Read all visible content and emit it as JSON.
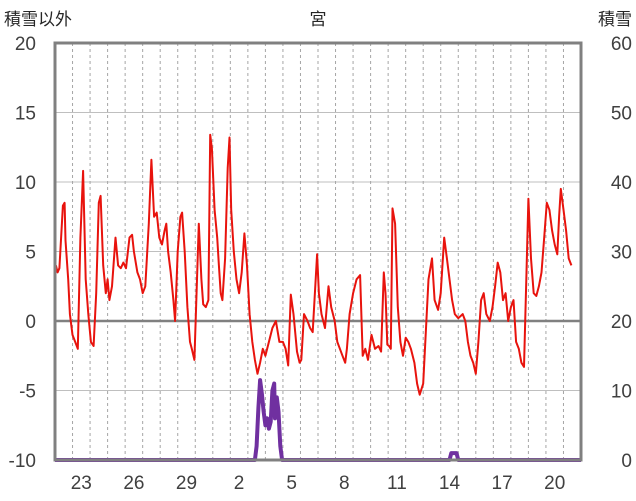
{
  "chart_data": {
    "type": "line",
    "title": "宮",
    "left_axis_label": "積雪以外",
    "right_axis_label": "積雪",
    "left_axis": {
      "min": -10,
      "max": 20,
      "ticks": [
        20,
        15,
        10,
        5,
        0,
        -5,
        -10
      ]
    },
    "right_axis": {
      "min": 0,
      "max": 60,
      "ticks": [
        60,
        50,
        40,
        30,
        20,
        10,
        0
      ]
    },
    "x_tick_labels": [
      "23",
      "26",
      "29",
      "2",
      "5",
      "8",
      "11",
      "14",
      "17",
      "20"
    ],
    "x_tick_day_index": [
      1.5,
      4.5,
      7.5,
      10.5,
      13.5,
      16.5,
      19.5,
      22.5,
      25.5,
      28.5
    ],
    "x_range_days": [
      0,
      30
    ],
    "grid": true,
    "series": [
      {
        "color": "#e8130d",
        "axis": "left",
        "points": [
          [
            0.05,
            4.0
          ],
          [
            0.15,
            3.5
          ],
          [
            0.25,
            3.8
          ],
          [
            0.45,
            8.3
          ],
          [
            0.55,
            8.5
          ],
          [
            0.6,
            5.8
          ],
          [
            0.75,
            3.0
          ],
          [
            0.85,
            0.5
          ],
          [
            1.0,
            -1.0
          ],
          [
            1.15,
            -1.5
          ],
          [
            1.3,
            -2.0
          ],
          [
            1.45,
            6.0
          ],
          [
            1.6,
            10.8
          ],
          [
            1.75,
            3.0
          ],
          [
            1.9,
            0.5
          ],
          [
            2.05,
            -1.5
          ],
          [
            2.2,
            -1.8
          ],
          [
            2.35,
            2.0
          ],
          [
            2.5,
            8.5
          ],
          [
            2.6,
            9.0
          ],
          [
            2.75,
            4.0
          ],
          [
            2.9,
            2.0
          ],
          [
            3.0,
            3.0
          ],
          [
            3.1,
            1.5
          ],
          [
            3.25,
            2.5
          ],
          [
            3.45,
            6.0
          ],
          [
            3.6,
            4.0
          ],
          [
            3.75,
            3.8
          ],
          [
            3.9,
            4.2
          ],
          [
            4.05,
            3.8
          ],
          [
            4.25,
            6.0
          ],
          [
            4.4,
            6.2
          ],
          [
            4.5,
            5.0
          ],
          [
            4.7,
            3.5
          ],
          [
            4.85,
            3.0
          ],
          [
            5.0,
            2.0
          ],
          [
            5.15,
            2.5
          ],
          [
            5.35,
            7.0
          ],
          [
            5.5,
            11.6
          ],
          [
            5.65,
            7.5
          ],
          [
            5.8,
            7.8
          ],
          [
            5.95,
            6.0
          ],
          [
            6.1,
            5.5
          ],
          [
            6.25,
            6.5
          ],
          [
            6.35,
            7.0
          ],
          [
            6.45,
            5.0
          ],
          [
            6.6,
            3.5
          ],
          [
            6.75,
            1.5
          ],
          [
            6.85,
            0.0
          ],
          [
            7.0,
            5.0
          ],
          [
            7.15,
            7.5
          ],
          [
            7.25,
            7.8
          ],
          [
            7.4,
            5.0
          ],
          [
            7.55,
            1.0
          ],
          [
            7.7,
            -1.5
          ],
          [
            7.8,
            -2.0
          ],
          [
            7.95,
            -2.8
          ],
          [
            8.05,
            1.0
          ],
          [
            8.2,
            7.0
          ],
          [
            8.35,
            3.0
          ],
          [
            8.45,
            1.2
          ],
          [
            8.6,
            1.0
          ],
          [
            8.75,
            1.5
          ],
          [
            8.85,
            13.4
          ],
          [
            8.95,
            12.4
          ],
          [
            9.1,
            8.0
          ],
          [
            9.25,
            6.0
          ],
          [
            9.35,
            4.0
          ],
          [
            9.45,
            2.0
          ],
          [
            9.55,
            1.5
          ],
          [
            9.7,
            4.5
          ],
          [
            9.85,
            11.0
          ],
          [
            9.95,
            13.2
          ],
          [
            10.05,
            8.0
          ],
          [
            10.2,
            5.0
          ],
          [
            10.35,
            3.0
          ],
          [
            10.5,
            2.0
          ],
          [
            10.65,
            3.5
          ],
          [
            10.8,
            6.3
          ],
          [
            10.95,
            4.0
          ],
          [
            11.1,
            0.5
          ],
          [
            11.25,
            -1.5
          ],
          [
            11.4,
            -2.8
          ],
          [
            11.55,
            -3.8
          ],
          [
            11.7,
            -3.0
          ],
          [
            11.85,
            -2.0
          ],
          [
            12.0,
            -2.5
          ],
          [
            12.2,
            -1.5
          ],
          [
            12.4,
            -0.5
          ],
          [
            12.6,
            0.0
          ],
          [
            12.8,
            -1.5
          ],
          [
            13.0,
            -1.5
          ],
          [
            13.15,
            -2.0
          ],
          [
            13.3,
            -3.2
          ],
          [
            13.45,
            1.9
          ],
          [
            13.6,
            0.5
          ],
          [
            13.8,
            -2.2
          ],
          [
            13.95,
            -3.0
          ],
          [
            14.05,
            -2.8
          ],
          [
            14.2,
            0.5
          ],
          [
            14.4,
            0.0
          ],
          [
            14.55,
            -0.5
          ],
          [
            14.7,
            -0.8
          ],
          [
            14.8,
            1.5
          ],
          [
            14.95,
            4.8
          ],
          [
            15.05,
            2.0
          ],
          [
            15.2,
            0.5
          ],
          [
            15.4,
            -0.5
          ],
          [
            15.6,
            2.5
          ],
          [
            15.75,
            1.0
          ],
          [
            15.95,
            0.0
          ],
          [
            16.1,
            -1.5
          ],
          [
            16.25,
            -2.0
          ],
          [
            16.4,
            -2.5
          ],
          [
            16.55,
            -3.0
          ],
          [
            16.65,
            -2.0
          ],
          [
            16.8,
            0.5
          ],
          [
            17.0,
            2.0
          ],
          [
            17.2,
            3.0
          ],
          [
            17.4,
            3.3
          ],
          [
            17.55,
            -2.5
          ],
          [
            17.7,
            -2.0
          ],
          [
            17.85,
            -2.8
          ],
          [
            18.05,
            -1.0
          ],
          [
            18.25,
            -2.0
          ],
          [
            18.45,
            -1.8
          ],
          [
            18.6,
            -2.2
          ],
          [
            18.75,
            3.5
          ],
          [
            18.85,
            2.0
          ],
          [
            18.95,
            -1.7
          ],
          [
            19.05,
            -1.8
          ],
          [
            19.15,
            -2.0
          ],
          [
            19.25,
            8.1
          ],
          [
            19.4,
            7.0
          ],
          [
            19.55,
            1.0
          ],
          [
            19.7,
            -1.5
          ],
          [
            19.85,
            -2.5
          ],
          [
            20.0,
            -1.2
          ],
          [
            20.15,
            -1.5
          ],
          [
            20.3,
            -2.0
          ],
          [
            20.5,
            -3.0
          ],
          [
            20.65,
            -4.5
          ],
          [
            20.8,
            -5.3
          ],
          [
            21.0,
            -4.5
          ],
          [
            21.3,
            3.0
          ],
          [
            21.5,
            4.5
          ],
          [
            21.65,
            1.5
          ],
          [
            21.85,
            0.8
          ],
          [
            22.0,
            2.0
          ],
          [
            22.2,
            6.0
          ],
          [
            22.35,
            4.5
          ],
          [
            22.5,
            3.0
          ],
          [
            22.65,
            1.5
          ],
          [
            22.8,
            0.5
          ],
          [
            23.0,
            0.2
          ],
          [
            23.25,
            0.5
          ],
          [
            23.4,
            0.0
          ],
          [
            23.55,
            -1.5
          ],
          [
            23.7,
            -2.5
          ],
          [
            23.85,
            -3.0
          ],
          [
            24.0,
            -3.8
          ],
          [
            24.15,
            -1.5
          ],
          [
            24.3,
            1.5
          ],
          [
            24.45,
            2.0
          ],
          [
            24.6,
            0.5
          ],
          [
            24.8,
            0.0
          ],
          [
            24.95,
            1.0
          ],
          [
            25.1,
            2.5
          ],
          [
            25.25,
            4.2
          ],
          [
            25.4,
            3.5
          ],
          [
            25.55,
            1.5
          ],
          [
            25.7,
            2.0
          ],
          [
            25.85,
            0.0
          ],
          [
            26.0,
            1.0
          ],
          [
            26.15,
            1.5
          ],
          [
            26.3,
            -1.5
          ],
          [
            26.45,
            -2.0
          ],
          [
            26.6,
            -3.0
          ],
          [
            26.75,
            -3.3
          ],
          [
            26.9,
            3.8
          ],
          [
            27.0,
            8.8
          ],
          [
            27.15,
            4.5
          ],
          [
            27.3,
            2.0
          ],
          [
            27.45,
            1.8
          ],
          [
            27.6,
            2.5
          ],
          [
            27.75,
            3.5
          ],
          [
            27.9,
            6.0
          ],
          [
            28.05,
            8.5
          ],
          [
            28.2,
            8.0
          ],
          [
            28.35,
            6.5
          ],
          [
            28.5,
            5.5
          ],
          [
            28.65,
            4.8
          ],
          [
            28.75,
            7.5
          ],
          [
            28.85,
            9.5
          ],
          [
            29.0,
            8.0
          ],
          [
            29.15,
            6.5
          ],
          [
            29.3,
            4.5
          ],
          [
            29.45,
            4.0
          ]
        ]
      },
      {
        "color": "#7030a0",
        "axis": "right",
        "points": [
          [
            0.0,
            0.0
          ],
          [
            11.4,
            0.0
          ],
          [
            11.5,
            2.0
          ],
          [
            11.6,
            7.5
          ],
          [
            11.7,
            11.5
          ],
          [
            11.8,
            9.5
          ],
          [
            11.9,
            7.0
          ],
          [
            12.0,
            5.0
          ],
          [
            12.1,
            6.0
          ],
          [
            12.2,
            4.5
          ],
          [
            12.3,
            5.5
          ],
          [
            12.4,
            10.0
          ],
          [
            12.5,
            11.0
          ],
          [
            12.55,
            6.0
          ],
          [
            12.65,
            9.0
          ],
          [
            12.75,
            7.0
          ],
          [
            12.85,
            2.0
          ],
          [
            12.95,
            0.0
          ],
          [
            22.5,
            0.0
          ],
          [
            22.6,
            1.0
          ],
          [
            22.9,
            1.0
          ],
          [
            23.0,
            0.0
          ],
          [
            30.0,
            0.0
          ]
        ]
      }
    ]
  }
}
